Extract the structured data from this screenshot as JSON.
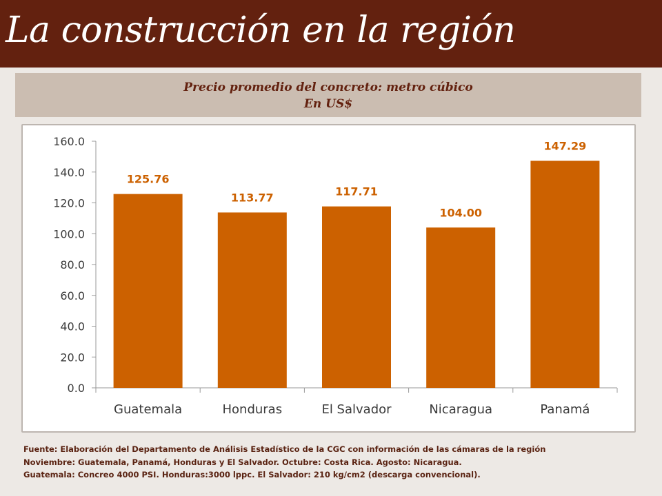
{
  "header": {
    "title": "La construcción en la región"
  },
  "chart_header": {
    "line1": "Precio promedio del concreto: metro cúbico",
    "line2": "En US$"
  },
  "chart_data": {
    "type": "bar",
    "categories": [
      "Guatemala",
      "Honduras",
      "El Salvador",
      "Nicaragua",
      "Panamá"
    ],
    "values": [
      125.76,
      113.77,
      117.71,
      104.0,
      147.29
    ],
    "data_labels": [
      "125.76",
      "113.77",
      "117.71",
      "104.00",
      "147.29"
    ],
    "ylim": [
      0,
      160
    ],
    "yticks": [
      "0.0",
      "20.0",
      "40.0",
      "60.0",
      "80.0",
      "100.0",
      "120.0",
      "140.0",
      "160.0"
    ],
    "grid": false,
    "legend": "none",
    "bar_color": "#cc6100",
    "label_color": "#cc6100"
  },
  "notes": {
    "line1": "Fuente:  Elaboración del Departamento de Análisis Estadístico de la CGC con información de las cámaras de la región",
    "line2": "Noviembre: Guatemala,  Panamá, Honduras y El Salvador.  Octubre: Costa Rica.  Agosto: Nicaragua.",
    "line3": "Guatemala:  Concreo 4000 PSI. Honduras:3000 lppc. El Salvador: 210 kg/cm2 (descarga convencional)."
  },
  "colors": {
    "header_bg": "#63210f",
    "subtitle_bg": "#cbbdb1",
    "subtitle_text": "#63210f",
    "page_bg": "#ede9e5"
  }
}
